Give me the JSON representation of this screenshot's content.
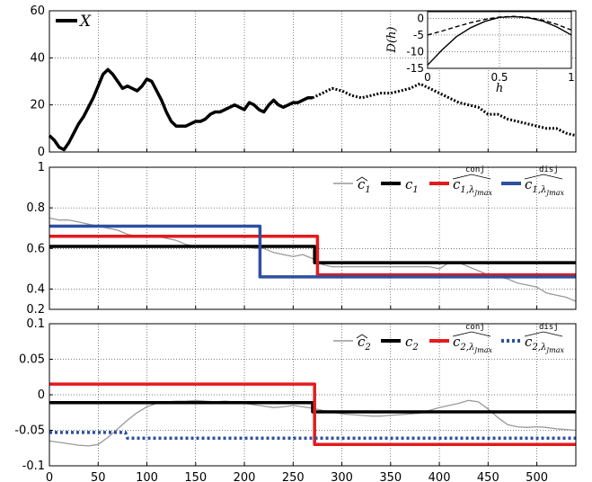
{
  "chart_data": [
    {
      "type": "line",
      "panel": "top",
      "xlim": [
        0,
        540
      ],
      "ylim": [
        0,
        60
      ],
      "yticks": [
        "0",
        "20",
        "40",
        "60"
      ],
      "grid": true,
      "legend": [
        "X"
      ],
      "series": [
        {
          "name": "X",
          "style": "solid-black-thick",
          "x": [
            0,
            5,
            10,
            15,
            20,
            25,
            30,
            35,
            40,
            45,
            50,
            55,
            60,
            65,
            70,
            75,
            80,
            85,
            90,
            95,
            100,
            105,
            110,
            115,
            120,
            125,
            130,
            135,
            140,
            145,
            150,
            155,
            160,
            165,
            170,
            175,
            180,
            185,
            190,
            195,
            200,
            205,
            210,
            215,
            220,
            225,
            230,
            235,
            240,
            245,
            250,
            255,
            260,
            265,
            270
          ],
          "y": [
            7,
            5,
            2,
            1,
            4,
            8,
            12,
            15,
            19,
            23,
            28,
            33,
            35,
            33,
            30,
            27,
            28,
            27,
            26,
            28,
            31,
            30,
            26,
            22,
            17,
            13,
            11,
            11,
            11,
            12,
            13,
            13,
            14,
            16,
            17,
            17,
            18,
            19,
            20,
            19,
            18,
            21,
            20,
            18,
            17,
            20,
            22,
            20,
            19,
            20,
            21,
            21,
            22,
            23,
            23
          ]
        },
        {
          "name": "",
          "style": "dotted-black-thick",
          "x": [
            270,
            280,
            290,
            300,
            310,
            320,
            330,
            340,
            350,
            360,
            370,
            380,
            390,
            400,
            410,
            420,
            430,
            440,
            450,
            460,
            470,
            480,
            490,
            500,
            510,
            520,
            530,
            540
          ],
          "y": [
            23,
            25,
            27,
            26,
            24,
            23,
            24,
            25,
            25,
            26,
            27,
            29,
            27,
            25,
            23,
            21,
            20,
            19,
            16,
            16,
            14,
            13,
            12,
            11,
            10,
            10,
            8,
            7
          ]
        }
      ],
      "inset": {
        "ylabel": "D(h)",
        "xlabel": "h",
        "xlim": [
          0,
          1
        ],
        "ylim": [
          -15,
          2
        ],
        "xticks": [
          "0",
          "0.5",
          "1"
        ],
        "yticks": [
          "0",
          "-5",
          "-10",
          "-15"
        ],
        "series": [
          {
            "name": "",
            "style": "solid",
            "x": [
              0,
              0.1,
              0.2,
              0.3,
              0.4,
              0.5,
              0.6,
              0.7,
              0.8,
              0.9,
              1.0
            ],
            "y": [
              -14.0,
              -9.5,
              -5.5,
              -2.8,
              -0.9,
              0.3,
              0.5,
              0.2,
              -0.8,
              -2.6,
              -5.0
            ]
          },
          {
            "name": "",
            "style": "dashed",
            "x": [
              0,
              0.1,
              0.2,
              0.3,
              0.4,
              0.5,
              0.6,
              0.7,
              0.8,
              0.9,
              1.0
            ],
            "y": [
              -5.0,
              -3.8,
              -2.5,
              -1.3,
              -0.3,
              0.4,
              0.6,
              0.3,
              -0.5,
              -1.8,
              -3.5
            ]
          }
        ]
      }
    },
    {
      "type": "line",
      "panel": "middle",
      "xlim": [
        0,
        540
      ],
      "ylim": [
        0.3,
        1
      ],
      "yticks": [
        "0.4",
        "0.6",
        "0.8",
        "1"
      ],
      "grid": true,
      "legend_placement": "top-right",
      "series": [
        {
          "name": "c1-hat",
          "color": "#999999",
          "x": [
            0,
            10,
            20,
            30,
            40,
            50,
            60,
            70,
            80,
            90,
            100,
            110,
            120,
            130,
            140,
            150,
            160,
            170,
            180,
            190,
            200,
            210,
            220,
            230,
            240,
            250,
            260,
            270,
            280,
            290,
            300,
            310,
            320,
            330,
            340,
            350,
            360,
            370,
            380,
            390,
            400,
            410,
            420,
            430,
            440,
            450,
            460,
            470,
            480,
            490,
            500,
            510,
            520,
            530,
            540
          ],
          "y": [
            0.75,
            0.74,
            0.74,
            0.73,
            0.72,
            0.71,
            0.7,
            0.69,
            0.67,
            0.66,
            0.66,
            0.66,
            0.65,
            0.64,
            0.62,
            0.61,
            0.61,
            0.61,
            0.61,
            0.61,
            0.61,
            0.6,
            0.6,
            0.58,
            0.57,
            0.56,
            0.57,
            0.55,
            0.52,
            0.51,
            0.51,
            0.51,
            0.51,
            0.51,
            0.51,
            0.51,
            0.51,
            0.51,
            0.51,
            0.51,
            0.5,
            0.53,
            0.53,
            0.51,
            0.49,
            0.47,
            0.46,
            0.45,
            0.43,
            0.42,
            0.41,
            0.38,
            0.37,
            0.36,
            0.34
          ]
        },
        {
          "name": "c1",
          "color": "#000000",
          "x": [
            0,
            272,
            272,
            540
          ],
          "y": [
            0.61,
            0.61,
            0.53,
            0.53
          ]
        },
        {
          "name": "c1-conj",
          "color": "#e41a1c",
          "x": [
            0,
            275,
            275,
            540
          ],
          "y": [
            0.66,
            0.66,
            0.47,
            0.47
          ]
        },
        {
          "name": "c1-disj",
          "color": "#2f4f9f",
          "x": [
            0,
            216,
            216,
            540
          ],
          "y": [
            0.71,
            0.71,
            0.46,
            0.46
          ]
        }
      ]
    },
    {
      "type": "line",
      "panel": "bottom",
      "xlim": [
        0,
        540
      ],
      "ylim": [
        -0.1,
        0.1
      ],
      "xticks": [
        "0",
        "50",
        "100",
        "150",
        "200",
        "250",
        "300",
        "350",
        "400",
        "450",
        "500"
      ],
      "yticks": [
        "-0.1",
        "-0.05",
        "0",
        "0.05",
        "0.1"
      ],
      "grid": true,
      "legend_placement": "top-right",
      "series": [
        {
          "name": "c2-hat",
          "color": "#999999",
          "x": [
            0,
            10,
            20,
            30,
            40,
            50,
            60,
            70,
            80,
            90,
            100,
            110,
            120,
            130,
            140,
            150,
            160,
            170,
            180,
            190,
            200,
            210,
            220,
            230,
            240,
            250,
            260,
            270,
            280,
            290,
            300,
            310,
            320,
            330,
            340,
            350,
            360,
            370,
            380,
            390,
            400,
            410,
            420,
            430,
            440,
            450,
            460,
            470,
            480,
            490,
            500,
            510,
            520,
            530,
            540
          ],
          "y": [
            -0.065,
            -0.067,
            -0.069,
            -0.071,
            -0.072,
            -0.07,
            -0.06,
            -0.048,
            -0.036,
            -0.025,
            -0.017,
            -0.012,
            -0.01,
            -0.009,
            -0.009,
            -0.008,
            -0.009,
            -0.01,
            -0.009,
            -0.01,
            -0.012,
            -0.014,
            -0.016,
            -0.018,
            -0.017,
            -0.015,
            -0.017,
            -0.019,
            -0.022,
            -0.024,
            -0.027,
            -0.028,
            -0.029,
            -0.03,
            -0.03,
            -0.029,
            -0.028,
            -0.027,
            -0.026,
            -0.022,
            -0.018,
            -0.015,
            -0.012,
            -0.008,
            -0.01,
            -0.02,
            -0.032,
            -0.042,
            -0.045,
            -0.046,
            -0.045,
            -0.046,
            -0.048,
            -0.049,
            -0.05
          ]
        },
        {
          "name": "c2",
          "color": "#000000",
          "x": [
            0,
            270,
            270,
            540
          ],
          "y": [
            -0.011,
            -0.011,
            -0.024,
            -0.024
          ]
        },
        {
          "name": "c2-conj",
          "color": "#e41a1c",
          "x": [
            0,
            272,
            272,
            540
          ],
          "y": [
            0.015,
            0.015,
            -0.07,
            -0.07
          ]
        },
        {
          "name": "c2-disj",
          "color": "#2f4f9f",
          "style": "dotted",
          "x": [
            0,
            78,
            80,
            540
          ],
          "y": [
            -0.053,
            -0.053,
            -0.061,
            -0.061
          ]
        }
      ]
    }
  ],
  "legend_labels": {
    "x": "X",
    "c1_hat": "c",
    "c1_hat_sub": "1",
    "c1": "c",
    "c1_sub": "1",
    "c1_conj": "c",
    "c1_conj_sub": "1,λ",
    "c1_conj_sub2": "J",
    "c1_conj_sub3": "max",
    "c1_conj_sup": "conj",
    "c1_disj": "c",
    "c1_disj_sub": "1,λ",
    "c1_disj_sub2": "J",
    "c1_disj_sub3": "max",
    "c1_disj_sup": "disj",
    "c2_hat": "c",
    "c2_hat_sub": "2",
    "c2": "c",
    "c2_sub": "2",
    "c2_conj": "c",
    "c2_conj_sub": "2,λ",
    "c2_conj_sub2": "J",
    "c2_conj_sub3": "max",
    "c2_conj_sup": "conj",
    "c2_disj": "c",
    "c2_disj_sub": "2,λ",
    "c2_disj_sub2": "J",
    "c2_disj_sub3": "max",
    "c2_disj_sup": "disj"
  },
  "colors": {
    "estimate": "#999999",
    "true": "#000000",
    "conj": "#e41a1c",
    "disj": "#2f4f9f"
  }
}
